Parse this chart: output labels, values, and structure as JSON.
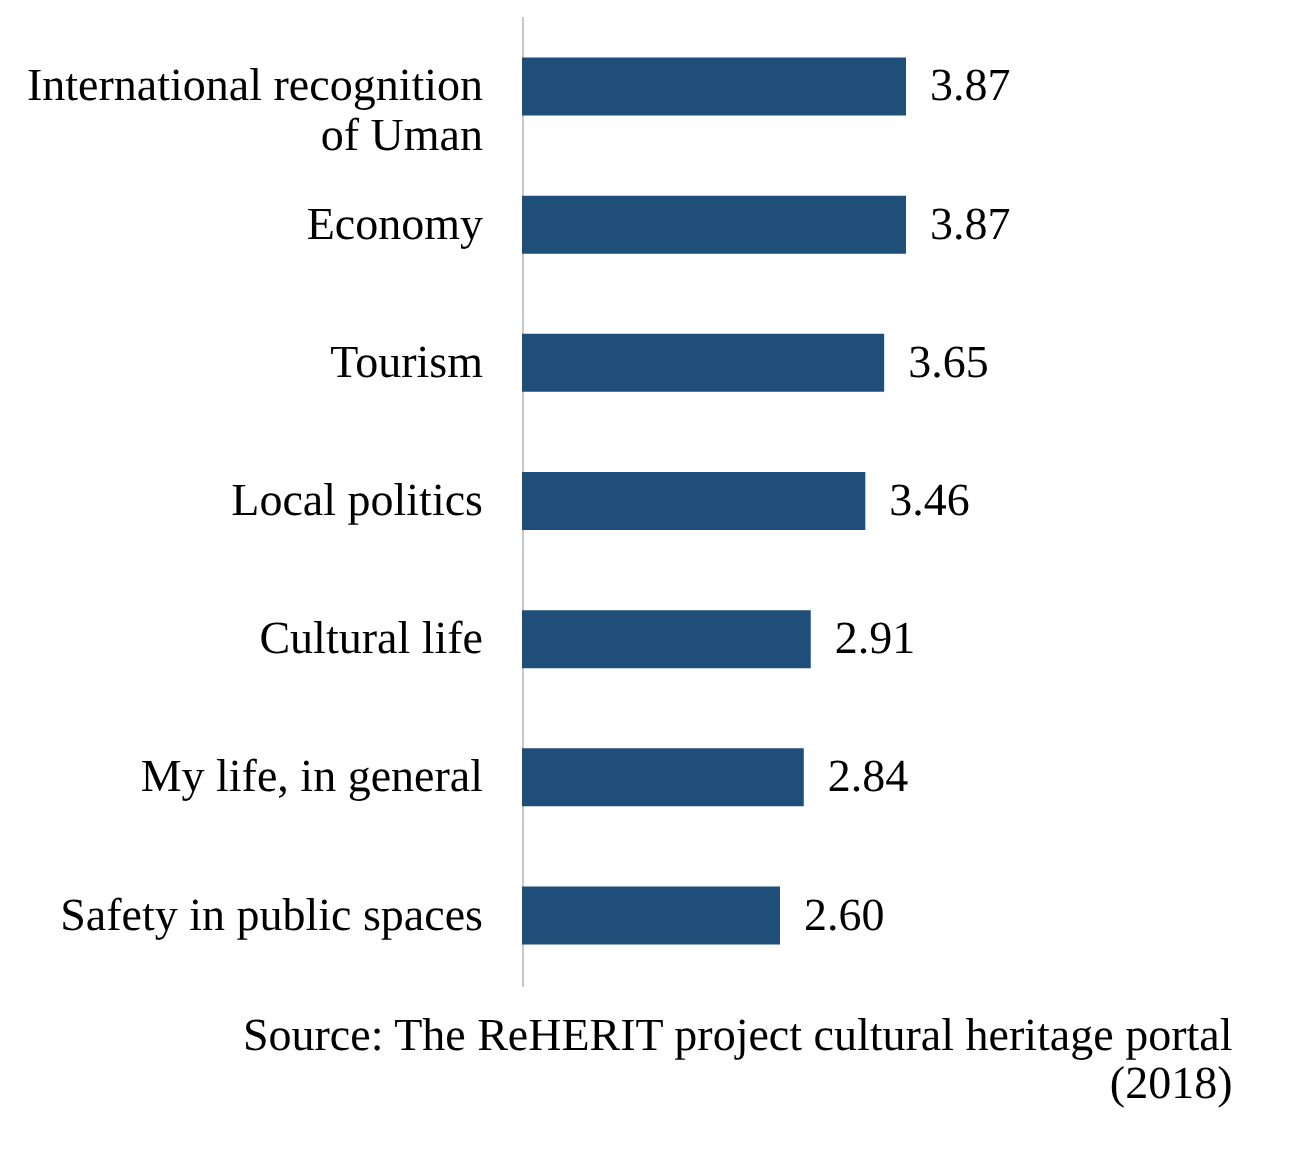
{
  "chart_data": {
    "type": "bar",
    "orientation": "horizontal",
    "categories": [
      "International recognition of Uman",
      "Economy",
      "Tourism",
      "Local politics",
      "Cultural life",
      "My life, in general",
      "Safety in public spaces"
    ],
    "values": [
      3.87,
      3.87,
      3.65,
      3.46,
      2.91,
      2.84,
      2.6
    ],
    "color": "#1f4e79",
    "value_labels": [
      "3.87",
      "3.87",
      "3.65",
      "3.46",
      "2.91",
      "2.84",
      "2.60"
    ],
    "annotations": [
      "Source: The ReHERIT project cultural heritage portal (2018)"
    ]
  }
}
